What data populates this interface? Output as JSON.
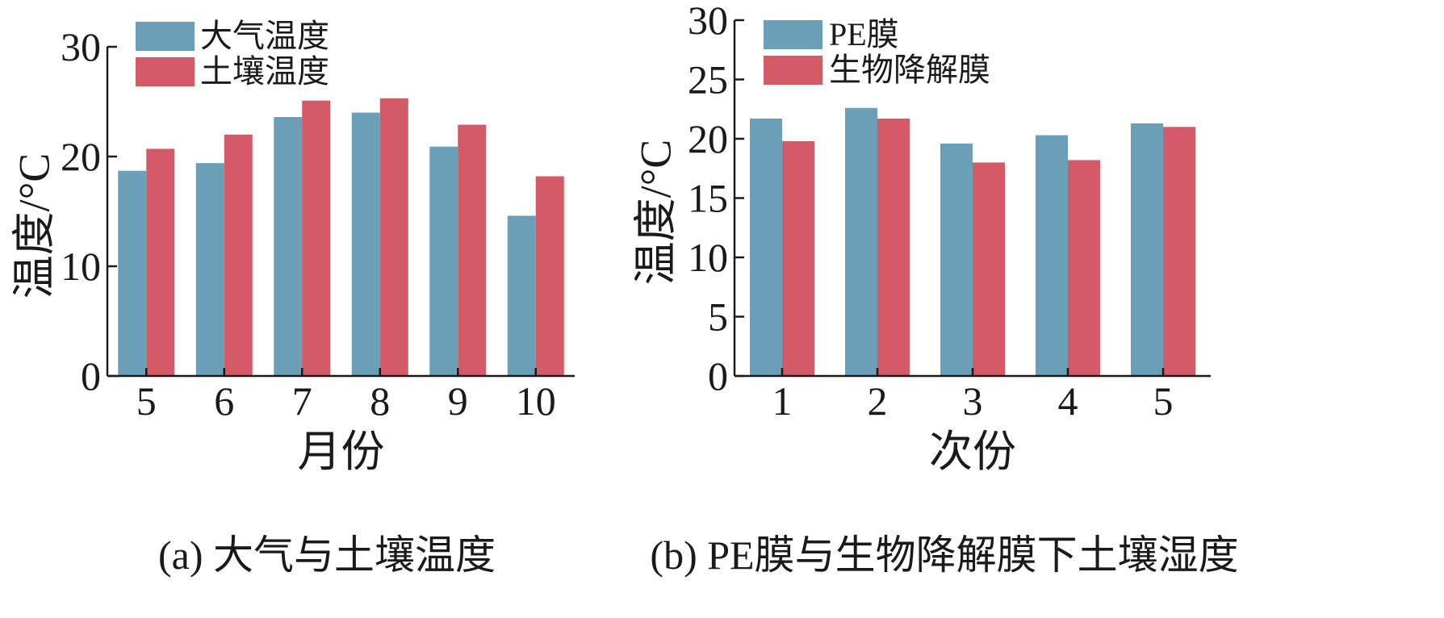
{
  "colors": {
    "series1": "#6b9fb8",
    "series2": "#d45a68",
    "axis": "#1a1a1a",
    "background": "#ffffff"
  },
  "chart_data": [
    {
      "type": "bar",
      "caption": "(a) 大气与土壤温度",
      "xlabel": "月份",
      "ylabel": "温度/°C",
      "categories": [
        "5",
        "6",
        "7",
        "8",
        "9",
        "10"
      ],
      "series": [
        {
          "name": "大气温度",
          "values": [
            18.7,
            19.4,
            23.6,
            24.0,
            20.9,
            14.6
          ]
        },
        {
          "name": "土壤温度",
          "values": [
            20.7,
            22.0,
            25.1,
            25.3,
            22.9,
            18.2
          ]
        }
      ],
      "ylim": [
        0,
        30
      ],
      "yticks": [
        0,
        10,
        20,
        30
      ],
      "legend_position": "top-left",
      "grid": false
    },
    {
      "type": "bar",
      "caption": "(b) PE膜与生物降解膜下土壤湿度",
      "xlabel": "次份",
      "ylabel": "温度/°C",
      "categories": [
        "1",
        "2",
        "3",
        "4",
        "5"
      ],
      "series": [
        {
          "name": "PE膜",
          "values": [
            21.7,
            22.6,
            19.6,
            20.3,
            21.3
          ]
        },
        {
          "name": "生物降解膜",
          "values": [
            19.8,
            21.7,
            18.0,
            18.2,
            21.0
          ]
        }
      ],
      "ylim": [
        0,
        30
      ],
      "yticks": [
        0,
        5,
        10,
        15,
        20,
        25,
        30
      ],
      "legend_position": "top-left",
      "grid": false
    }
  ]
}
